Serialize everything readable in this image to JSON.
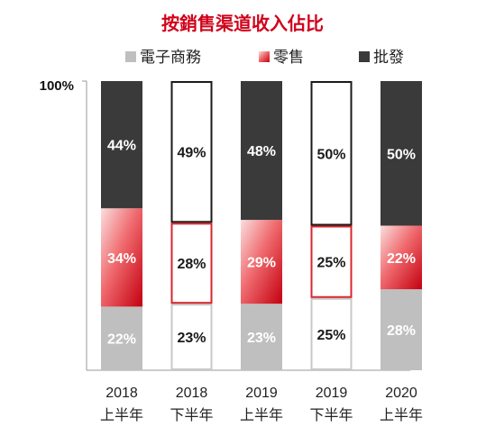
{
  "chart_data": {
    "type": "bar",
    "stacked": true,
    "title": "按銷售渠道收入佔比",
    "y_tick_label": "100%",
    "ylim": [
      0,
      100
    ],
    "legend_position": "top",
    "categories": [
      [
        "2018",
        "上半年"
      ],
      [
        "2018",
        "下半年"
      ],
      [
        "2019",
        "上半年"
      ],
      [
        "2019",
        "下半年"
      ],
      [
        "2020",
        "上半年"
      ]
    ],
    "series": [
      {
        "name": "電子商務",
        "color": "#bfbfbf",
        "values": [
          22,
          23,
          23,
          25,
          28
        ],
        "labels": [
          "22%",
          "23%",
          "23%",
          "25%",
          "28%"
        ]
      },
      {
        "name": "零售",
        "color": "#e8353a",
        "values": [
          34,
          28,
          29,
          25,
          22
        ],
        "labels": [
          "34%",
          "28%",
          "29%",
          "25%",
          "22%"
        ]
      },
      {
        "name": "批發",
        "color": "#3a3a3a",
        "values": [
          44,
          49,
          48,
          50,
          50
        ],
        "labels": [
          "44%",
          "49%",
          "48%",
          "50%",
          "50%"
        ]
      }
    ],
    "outlined_categories": [
      1,
      3
    ]
  }
}
